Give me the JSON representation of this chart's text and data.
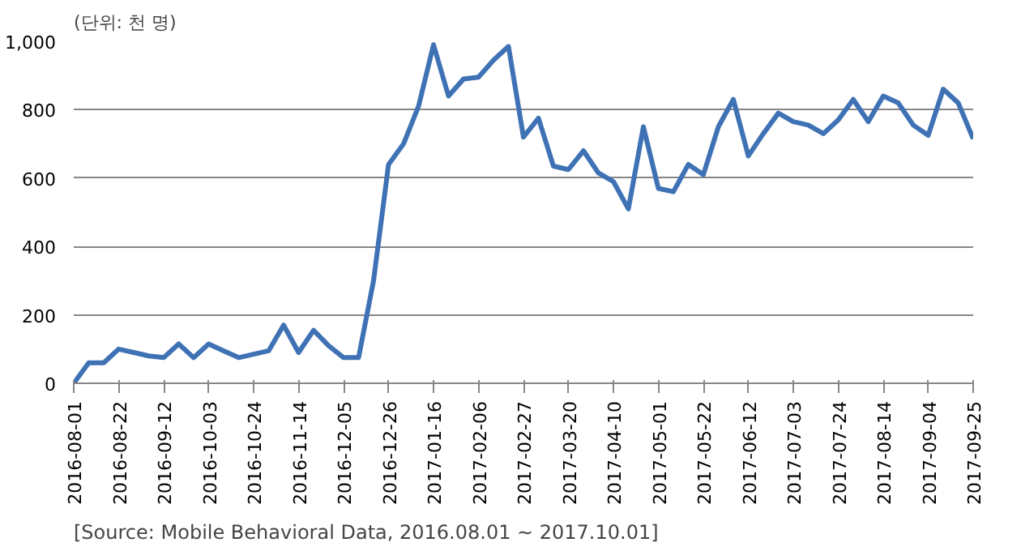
{
  "chart_data": {
    "type": "line",
    "ylabel": "(단위: 천 명)",
    "annotations": [
      "[Source: Mobile Behavioral Data, 2016.08.01 ~ 2017.10.01]"
    ],
    "x": [
      "2016-08-01",
      "2016-08-08",
      "2016-08-15",
      "2016-08-22",
      "2016-08-29",
      "2016-09-05",
      "2016-09-12",
      "2016-09-19",
      "2016-09-26",
      "2016-10-03",
      "2016-10-10",
      "2016-10-17",
      "2016-10-24",
      "2016-10-31",
      "2016-11-07",
      "2016-11-14",
      "2016-11-21",
      "2016-11-28",
      "2016-12-05",
      "2016-12-12",
      "2016-12-19",
      "2016-12-26",
      "2017-01-02",
      "2017-01-09",
      "2017-01-16",
      "2017-01-23",
      "2017-01-30",
      "2017-02-06",
      "2017-02-13",
      "2017-02-20",
      "2017-02-27",
      "2017-03-06",
      "2017-03-13",
      "2017-03-20",
      "2017-03-27",
      "2017-04-03",
      "2017-04-10",
      "2017-04-17",
      "2017-04-24",
      "2017-05-01",
      "2017-05-08",
      "2017-05-15",
      "2017-05-22",
      "2017-05-29",
      "2017-06-05",
      "2017-06-12",
      "2017-06-19",
      "2017-06-26",
      "2017-07-03",
      "2017-07-10",
      "2017-07-17",
      "2017-07-24",
      "2017-07-31",
      "2017-08-07",
      "2017-08-14",
      "2017-08-21",
      "2017-08-28",
      "2017-09-04",
      "2017-09-11",
      "2017-09-18",
      "2017-09-25"
    ],
    "series": [
      {
        "color": "#3f72b5",
        "values": [
          0,
          60,
          60,
          100,
          90,
          80,
          75,
          115,
          75,
          115,
          95,
          75,
          85,
          95,
          170,
          90,
          155,
          110,
          75,
          75,
          300,
          640,
          700,
          810,
          990,
          840,
          890,
          895,
          945,
          985,
          720,
          775,
          635,
          625,
          680,
          615,
          590,
          510,
          750,
          570,
          560,
          640,
          610,
          750,
          830,
          665,
          730,
          790,
          765,
          755,
          730,
          770,
          830,
          765,
          840,
          820,
          755,
          725,
          860,
          820,
          715
        ]
      }
    ],
    "xlim": [
      "2016-08-01",
      "2017-09-25"
    ],
    "xticks": [
      "2016-08-01",
      "2016-08-22",
      "2016-09-12",
      "2016-10-03",
      "2016-10-24",
      "2016-11-14",
      "2016-12-05",
      "2016-12-26",
      "2017-01-16",
      "2017-02-06",
      "2017-02-27",
      "2017-03-20",
      "2017-04-10",
      "2017-05-01",
      "2017-05-22",
      "2017-06-12",
      "2017-07-03",
      "2017-07-24",
      "2017-08-14",
      "2017-09-04",
      "2017-09-25"
    ],
    "ylim": [
      0,
      1000
    ],
    "yticks": [
      0,
      200,
      400,
      600,
      800,
      {
        "value": 1000,
        "label": "1,000"
      }
    ],
    "grid": "y",
    "marker": "none",
    "line_style": "solid"
  }
}
